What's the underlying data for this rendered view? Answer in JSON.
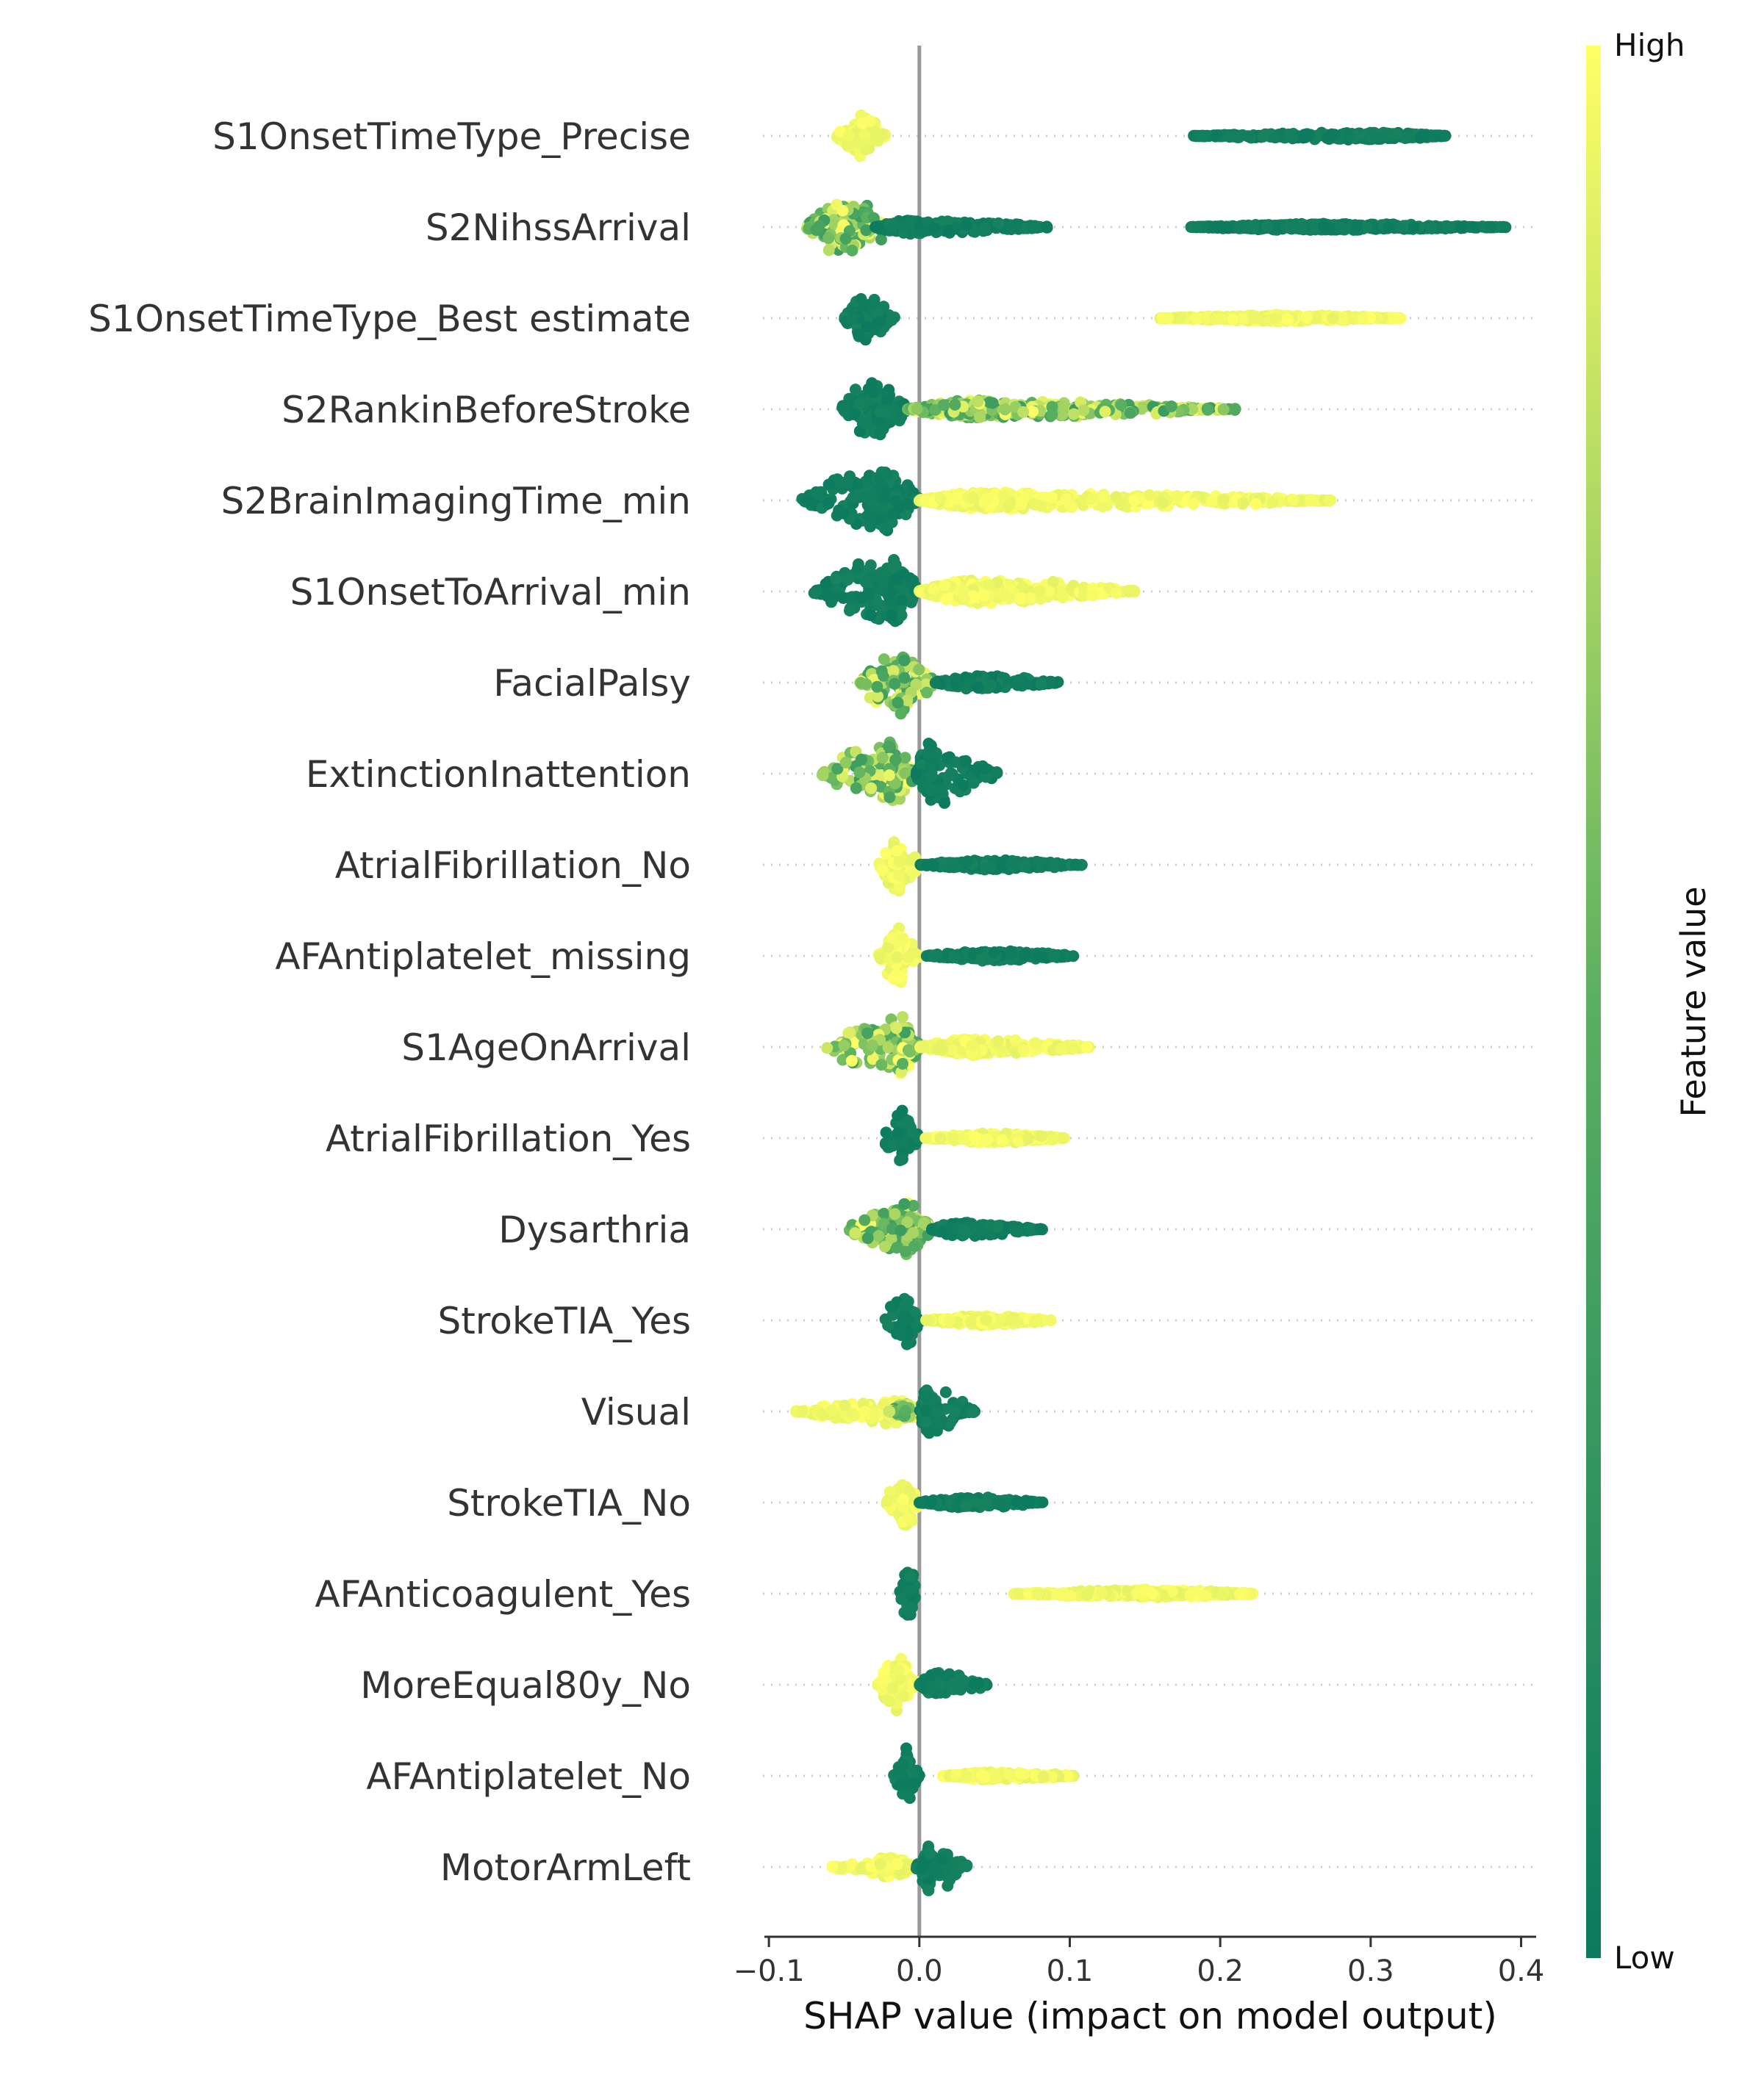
{
  "chart_data": {
    "type": "scatter",
    "subtype": "shap-beeswarm",
    "title": "",
    "xlabel": "SHAP value (impact on model output)",
    "ylabel": "",
    "xlim": [
      -0.103,
      0.41
    ],
    "xticks": [
      -0.1,
      0.0,
      0.1,
      0.2,
      0.3,
      0.4
    ],
    "xtick_labels": [
      "−0.1",
      "0.0",
      "0.1",
      "0.2",
      "0.3",
      "0.4"
    ],
    "zero_line": 0.0,
    "grid": "dotted horizontal guide per feature",
    "legend": {
      "type": "colorbar",
      "placement": "right",
      "title": "Feature value",
      "high_label": "High",
      "low_label": "Low",
      "high_color": "#ffff66",
      "mid_color": "#5ab060",
      "low_color": "#0b7a5e"
    },
    "features": [
      {
        "name": "S1OnsetTimeType_Precise",
        "segments": [
          {
            "min": -0.055,
            "max": -0.022,
            "center": -0.039,
            "spread": 0.55,
            "color": "high"
          },
          {
            "min": 0.18,
            "max": 0.35,
            "center": 0.3,
            "spread": 0.09,
            "color": "low"
          }
        ]
      },
      {
        "name": "S2NihssArrival",
        "segments": [
          {
            "min": -0.075,
            "max": -0.015,
            "center": -0.05,
            "spread": 0.7,
            "color": "mixed"
          },
          {
            "min": -0.03,
            "max": 0.085,
            "center": 0.0,
            "spread": 0.18,
            "color": "low"
          },
          {
            "min": 0.18,
            "max": 0.39,
            "center": 0.27,
            "spread": 0.08,
            "color": "low"
          }
        ]
      },
      {
        "name": "S1OnsetTimeType_Best estimate",
        "segments": [
          {
            "min": -0.05,
            "max": -0.016,
            "center": -0.035,
            "spread": 0.6,
            "color": "low"
          },
          {
            "min": 0.16,
            "max": 0.32,
            "center": 0.24,
            "spread": 0.08,
            "color": "high"
          }
        ]
      },
      {
        "name": "S2RankinBeforeStroke",
        "segments": [
          {
            "min": -0.053,
            "max": -0.008,
            "center": -0.028,
            "spread": 0.75,
            "color": "low"
          },
          {
            "min": -0.008,
            "max": 0.21,
            "center": 0.04,
            "spread": 0.22,
            "color": "mixed"
          }
        ]
      },
      {
        "name": "S2BrainImagingTime_min",
        "segments": [
          {
            "min": -0.078,
            "max": 0.0,
            "center": -0.025,
            "spread": 0.8,
            "color": "low"
          },
          {
            "min": 0.0,
            "max": 0.275,
            "center": 0.05,
            "spread": 0.22,
            "color": "high"
          }
        ]
      },
      {
        "name": "S1OnsetToArrival_min",
        "segments": [
          {
            "min": -0.07,
            "max": 0.0,
            "center": -0.018,
            "spread": 0.8,
            "color": "low"
          },
          {
            "min": 0.0,
            "max": 0.145,
            "center": 0.035,
            "spread": 0.3,
            "color": "high"
          }
        ]
      },
      {
        "name": "FacialPalsy",
        "segments": [
          {
            "min": -0.04,
            "max": 0.01,
            "center": -0.012,
            "spread": 0.8,
            "color": "mixed"
          },
          {
            "min": 0.01,
            "max": 0.093,
            "center": 0.04,
            "spread": 0.18,
            "color": "low"
          }
        ]
      },
      {
        "name": "ExtinctionInattention",
        "segments": [
          {
            "min": -0.065,
            "max": -0.002,
            "center": -0.02,
            "spread": 0.8,
            "color": "mixed"
          },
          {
            "min": -0.002,
            "max": 0.052,
            "center": 0.008,
            "spread": 0.8,
            "color": "low"
          }
        ]
      },
      {
        "name": "AtrialFibrillation_No",
        "segments": [
          {
            "min": -0.027,
            "max": 0.0,
            "center": -0.014,
            "spread": 0.7,
            "color": "high"
          },
          {
            "min": 0.0,
            "max": 0.108,
            "center": 0.05,
            "spread": 0.12,
            "color": "low"
          }
        ]
      },
      {
        "name": "AFAntiplatelet_missing",
        "segments": [
          {
            "min": -0.027,
            "max": 0.0,
            "center": -0.014,
            "spread": 0.7,
            "color": "high"
          },
          {
            "min": 0.004,
            "max": 0.103,
            "center": 0.05,
            "spread": 0.12,
            "color": "low"
          }
        ]
      },
      {
        "name": "S1AgeOnArrival",
        "segments": [
          {
            "min": -0.065,
            "max": 0.0,
            "center": -0.012,
            "spread": 0.75,
            "color": "mixed"
          },
          {
            "min": 0.0,
            "max": 0.115,
            "center": 0.035,
            "spread": 0.2,
            "color": "high"
          }
        ]
      },
      {
        "name": "AtrialFibrillation_Yes",
        "segments": [
          {
            "min": -0.025,
            "max": 0.0,
            "center": -0.012,
            "spread": 0.7,
            "color": "low"
          },
          {
            "min": 0.004,
            "max": 0.097,
            "center": 0.05,
            "spread": 0.12,
            "color": "high"
          }
        ]
      },
      {
        "name": "Dysarthria",
        "segments": [
          {
            "min": -0.048,
            "max": 0.008,
            "center": -0.008,
            "spread": 0.7,
            "color": "mixed"
          },
          {
            "min": 0.008,
            "max": 0.082,
            "center": 0.03,
            "spread": 0.18,
            "color": "low"
          }
        ]
      },
      {
        "name": "StrokeTIA_Yes",
        "segments": [
          {
            "min": -0.023,
            "max": 0.0,
            "center": -0.01,
            "spread": 0.7,
            "color": "low"
          },
          {
            "min": 0.004,
            "max": 0.088,
            "center": 0.045,
            "spread": 0.12,
            "color": "high"
          }
        ]
      },
      {
        "name": "Visual",
        "segments": [
          {
            "min": -0.082,
            "max": 0.0,
            "center": -0.015,
            "spread": 0.3,
            "color": "high"
          },
          {
            "min": -0.02,
            "max": 0.0,
            "center": -0.01,
            "spread": 0.2,
            "color": "mixed"
          },
          {
            "min": 0.0,
            "max": 0.037,
            "center": 0.005,
            "spread": 0.6,
            "color": "low"
          }
        ]
      },
      {
        "name": "StrokeTIA_No",
        "segments": [
          {
            "min": -0.022,
            "max": 0.0,
            "center": -0.011,
            "spread": 0.7,
            "color": "high"
          },
          {
            "min": 0.0,
            "max": 0.083,
            "center": 0.03,
            "spread": 0.14,
            "color": "low"
          }
        ]
      },
      {
        "name": "AFAnticoagulent_Yes",
        "segments": [
          {
            "min": -0.013,
            "max": -0.002,
            "center": -0.007,
            "spread": 0.8,
            "color": "low"
          },
          {
            "min": 0.063,
            "max": 0.222,
            "center": 0.15,
            "spread": 0.1,
            "color": "high"
          }
        ]
      },
      {
        "name": "MoreEqual80y_No",
        "segments": [
          {
            "min": -0.028,
            "max": 0.0,
            "center": -0.013,
            "spread": 0.7,
            "color": "high"
          },
          {
            "min": 0.0,
            "max": 0.046,
            "center": 0.012,
            "spread": 0.3,
            "color": "low"
          }
        ]
      },
      {
        "name": "AFAntiplatelet_No",
        "segments": [
          {
            "min": -0.017,
            "max": 0.0,
            "center": -0.008,
            "spread": 0.7,
            "color": "low"
          },
          {
            "min": 0.015,
            "max": 0.103,
            "center": 0.05,
            "spread": 0.1,
            "color": "high"
          }
        ]
      },
      {
        "name": "MotorArmLeft",
        "segments": [
          {
            "min": -0.058,
            "max": -0.002,
            "center": -0.02,
            "spread": 0.25,
            "color": "high"
          },
          {
            "min": -0.002,
            "max": 0.032,
            "center": 0.006,
            "spread": 0.6,
            "color": "low"
          }
        ]
      }
    ]
  }
}
